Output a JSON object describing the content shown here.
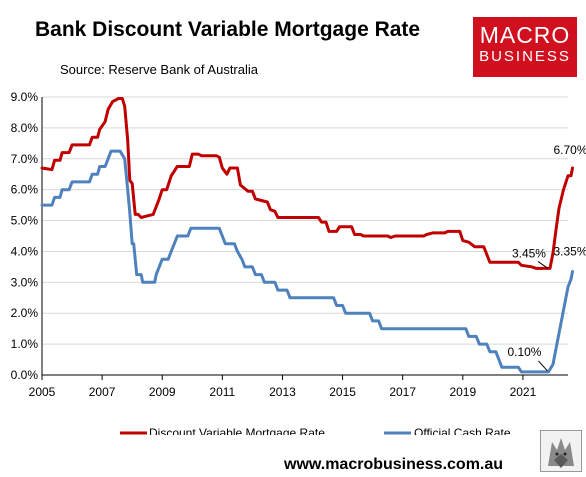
{
  "header": {
    "title": "Bank Discount Variable Mortgage Rate",
    "source": "Source: Reserve Bank of Australia"
  },
  "logo": {
    "line1": "MACRO",
    "line2": "BUSINESS"
  },
  "footer": {
    "url": "www.macrobusiness.com.au"
  },
  "chart_data": {
    "type": "line",
    "title": "Bank Discount Variable Mortgage Rate",
    "xlabel": "",
    "ylabel": "",
    "xlim": [
      2005,
      2022.5
    ],
    "ylim": [
      0,
      9
    ],
    "x_ticks": [
      2005,
      2007,
      2009,
      2011,
      2013,
      2015,
      2017,
      2019,
      2021
    ],
    "y_ticks": [
      "0.0%",
      "1.0%",
      "2.0%",
      "3.0%",
      "4.0%",
      "5.0%",
      "6.0%",
      "7.0%",
      "8.0%",
      "9.0%"
    ],
    "grid": "horizontal",
    "legend": "bottom",
    "series": [
      {
        "name": "Discount Variable Mortgage Rate",
        "color": "#c00000",
        "points": [
          [
            2005,
            6.7
          ],
          [
            2005.33,
            6.65
          ],
          [
            2005.42,
            6.95
          ],
          [
            2005.6,
            6.95
          ],
          [
            2005.67,
            7.2
          ],
          [
            2005.9,
            7.2
          ],
          [
            2006.0,
            7.45
          ],
          [
            2006.58,
            7.45
          ],
          [
            2006.67,
            7.7
          ],
          [
            2006.85,
            7.7
          ],
          [
            2006.92,
            7.95
          ],
          [
            2007.1,
            8.2
          ],
          [
            2007.2,
            8.6
          ],
          [
            2007.35,
            8.85
          ],
          [
            2007.55,
            8.95
          ],
          [
            2007.67,
            8.95
          ],
          [
            2007.75,
            8.7
          ],
          [
            2007.85,
            7.6
          ],
          [
            2007.92,
            6.3
          ],
          [
            2008.0,
            6.2
          ],
          [
            2008.1,
            5.2
          ],
          [
            2008.2,
            5.2
          ],
          [
            2008.3,
            5.1
          ],
          [
            2008.5,
            5.15
          ],
          [
            2008.7,
            5.2
          ],
          [
            2008.9,
            5.7
          ],
          [
            2009.0,
            6.0
          ],
          [
            2009.15,
            6.0
          ],
          [
            2009.3,
            6.45
          ],
          [
            2009.5,
            6.75
          ],
          [
            2009.9,
            6.75
          ],
          [
            2010.0,
            7.15
          ],
          [
            2010.2,
            7.15
          ],
          [
            2010.3,
            7.1
          ],
          [
            2010.8,
            7.1
          ],
          [
            2010.9,
            7.05
          ],
          [
            2011.0,
            6.7
          ],
          [
            2011.15,
            6.5
          ],
          [
            2011.25,
            6.7
          ],
          [
            2011.5,
            6.7
          ],
          [
            2011.6,
            6.15
          ],
          [
            2011.85,
            5.95
          ],
          [
            2012.0,
            5.95
          ],
          [
            2012.1,
            5.7
          ],
          [
            2012.3,
            5.65
          ],
          [
            2012.5,
            5.6
          ],
          [
            2012.6,
            5.35
          ],
          [
            2012.75,
            5.3
          ],
          [
            2012.85,
            5.1
          ],
          [
            2014.2,
            5.1
          ],
          [
            2014.3,
            4.95
          ],
          [
            2014.45,
            4.95
          ],
          [
            2014.55,
            4.65
          ],
          [
            2014.8,
            4.65
          ],
          [
            2014.9,
            4.8
          ],
          [
            2015.3,
            4.8
          ],
          [
            2015.4,
            4.55
          ],
          [
            2015.6,
            4.55
          ],
          [
            2015.7,
            4.5
          ],
          [
            2016.0,
            4.5
          ],
          [
            2016.5,
            4.5
          ],
          [
            2016.6,
            4.45
          ],
          [
            2016.75,
            4.5
          ],
          [
            2017.7,
            4.5
          ],
          [
            2017.8,
            4.55
          ],
          [
            2018.0,
            4.6
          ],
          [
            2018.4,
            4.6
          ],
          [
            2018.5,
            4.65
          ],
          [
            2018.9,
            4.65
          ],
          [
            2019.0,
            4.35
          ],
          [
            2019.2,
            4.3
          ],
          [
            2019.4,
            4.15
          ],
          [
            2019.7,
            4.15
          ],
          [
            2019.8,
            3.9
          ],
          [
            2019.9,
            3.65
          ],
          [
            2020.85,
            3.65
          ],
          [
            2020.95,
            3.55
          ],
          [
            2021.3,
            3.5
          ],
          [
            2021.45,
            3.45
          ],
          [
            2021.9,
            3.45
          ],
          [
            2022.0,
            3.95
          ],
          [
            2022.1,
            4.7
          ],
          [
            2022.2,
            5.4
          ],
          [
            2022.35,
            6.0
          ],
          [
            2022.5,
            6.45
          ],
          [
            2022.6,
            6.45
          ],
          [
            2022.65,
            6.7
          ]
        ]
      },
      {
        "name": "Official Cash Rate",
        "color": "#4f81bd",
        "points": [
          [
            2005,
            5.5
          ],
          [
            2005.33,
            5.5
          ],
          [
            2005.42,
            5.75
          ],
          [
            2005.6,
            5.75
          ],
          [
            2005.67,
            6.0
          ],
          [
            2005.9,
            6.0
          ],
          [
            2006.0,
            6.25
          ],
          [
            2006.58,
            6.25
          ],
          [
            2006.67,
            6.5
          ],
          [
            2006.85,
            6.5
          ],
          [
            2006.92,
            6.75
          ],
          [
            2007.1,
            6.75
          ],
          [
            2007.2,
            7.0
          ],
          [
            2007.3,
            7.25
          ],
          [
            2007.6,
            7.25
          ],
          [
            2007.75,
            7.0
          ],
          [
            2007.85,
            6.0
          ],
          [
            2007.92,
            5.25
          ],
          [
            2008.0,
            4.25
          ],
          [
            2008.05,
            4.25
          ],
          [
            2008.15,
            3.25
          ],
          [
            2008.3,
            3.25
          ],
          [
            2008.35,
            3.0
          ],
          [
            2008.75,
            3.0
          ],
          [
            2008.8,
            3.25
          ],
          [
            2008.9,
            3.5
          ],
          [
            2009.0,
            3.75
          ],
          [
            2009.2,
            3.75
          ],
          [
            2009.3,
            4.0
          ],
          [
            2009.4,
            4.25
          ],
          [
            2009.5,
            4.5
          ],
          [
            2009.85,
            4.5
          ],
          [
            2009.95,
            4.75
          ],
          [
            2010.9,
            4.75
          ],
          [
            2011.0,
            4.5
          ],
          [
            2011.1,
            4.25
          ],
          [
            2011.4,
            4.25
          ],
          [
            2011.5,
            4.0
          ],
          [
            2011.65,
            3.75
          ],
          [
            2011.75,
            3.5
          ],
          [
            2012.0,
            3.5
          ],
          [
            2012.1,
            3.25
          ],
          [
            2012.3,
            3.25
          ],
          [
            2012.4,
            3.0
          ],
          [
            2012.75,
            3.0
          ],
          [
            2012.85,
            2.75
          ],
          [
            2013.15,
            2.75
          ],
          [
            2013.25,
            2.5
          ],
          [
            2014.7,
            2.5
          ],
          [
            2014.8,
            2.25
          ],
          [
            2015.0,
            2.25
          ],
          [
            2015.1,
            2.0
          ],
          [
            2015.9,
            2.0
          ],
          [
            2016.0,
            1.75
          ],
          [
            2016.2,
            1.75
          ],
          [
            2016.3,
            1.5
          ],
          [
            2019.1,
            1.5
          ],
          [
            2019.2,
            1.25
          ],
          [
            2019.45,
            1.25
          ],
          [
            2019.55,
            1.0
          ],
          [
            2019.8,
            1.0
          ],
          [
            2019.9,
            0.75
          ],
          [
            2020.1,
            0.75
          ],
          [
            2020.2,
            0.5
          ],
          [
            2020.3,
            0.25
          ],
          [
            2020.85,
            0.25
          ],
          [
            2020.95,
            0.1
          ],
          [
            2021.85,
            0.1
          ],
          [
            2022.0,
            0.35
          ],
          [
            2022.1,
            0.85
          ],
          [
            2022.2,
            1.35
          ],
          [
            2022.3,
            1.85
          ],
          [
            2022.4,
            2.35
          ],
          [
            2022.5,
            2.85
          ],
          [
            2022.6,
            3.1
          ],
          [
            2022.65,
            3.35
          ]
        ]
      }
    ],
    "annotations": [
      {
        "text": "6.70%",
        "x": 2022.65,
        "y": 6.7
      },
      {
        "text": "3.45%",
        "x": 2021.9,
        "y": 3.45
      },
      {
        "text": "3.35%",
        "x": 2022.65,
        "y": 3.35
      },
      {
        "text": "0.10%",
        "x": 2021.85,
        "y": 0.1
      }
    ]
  }
}
